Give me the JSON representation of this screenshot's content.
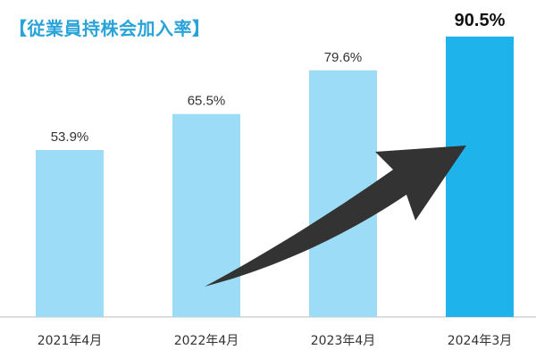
{
  "chart_data": {
    "type": "bar",
    "title": "【従業員持株会加入率】",
    "categories": [
      "2021年4月",
      "2022年4月",
      "2023年4月",
      "2024年3月"
    ],
    "values": [
      53.9,
      65.5,
      79.6,
      90.5
    ],
    "value_labels": [
      "53.9%",
      "65.5%",
      "79.6%",
      "90.5%"
    ],
    "highlight_index": 3,
    "ylim": [
      0,
      100
    ],
    "grid": false,
    "legend": "none",
    "colors": {
      "bar": "#9ddcf7",
      "bar_highlight": "#1fb3ec",
      "title": "#2aa3d8",
      "arrow": "#333333",
      "baseline": "#bbbbbb"
    }
  }
}
